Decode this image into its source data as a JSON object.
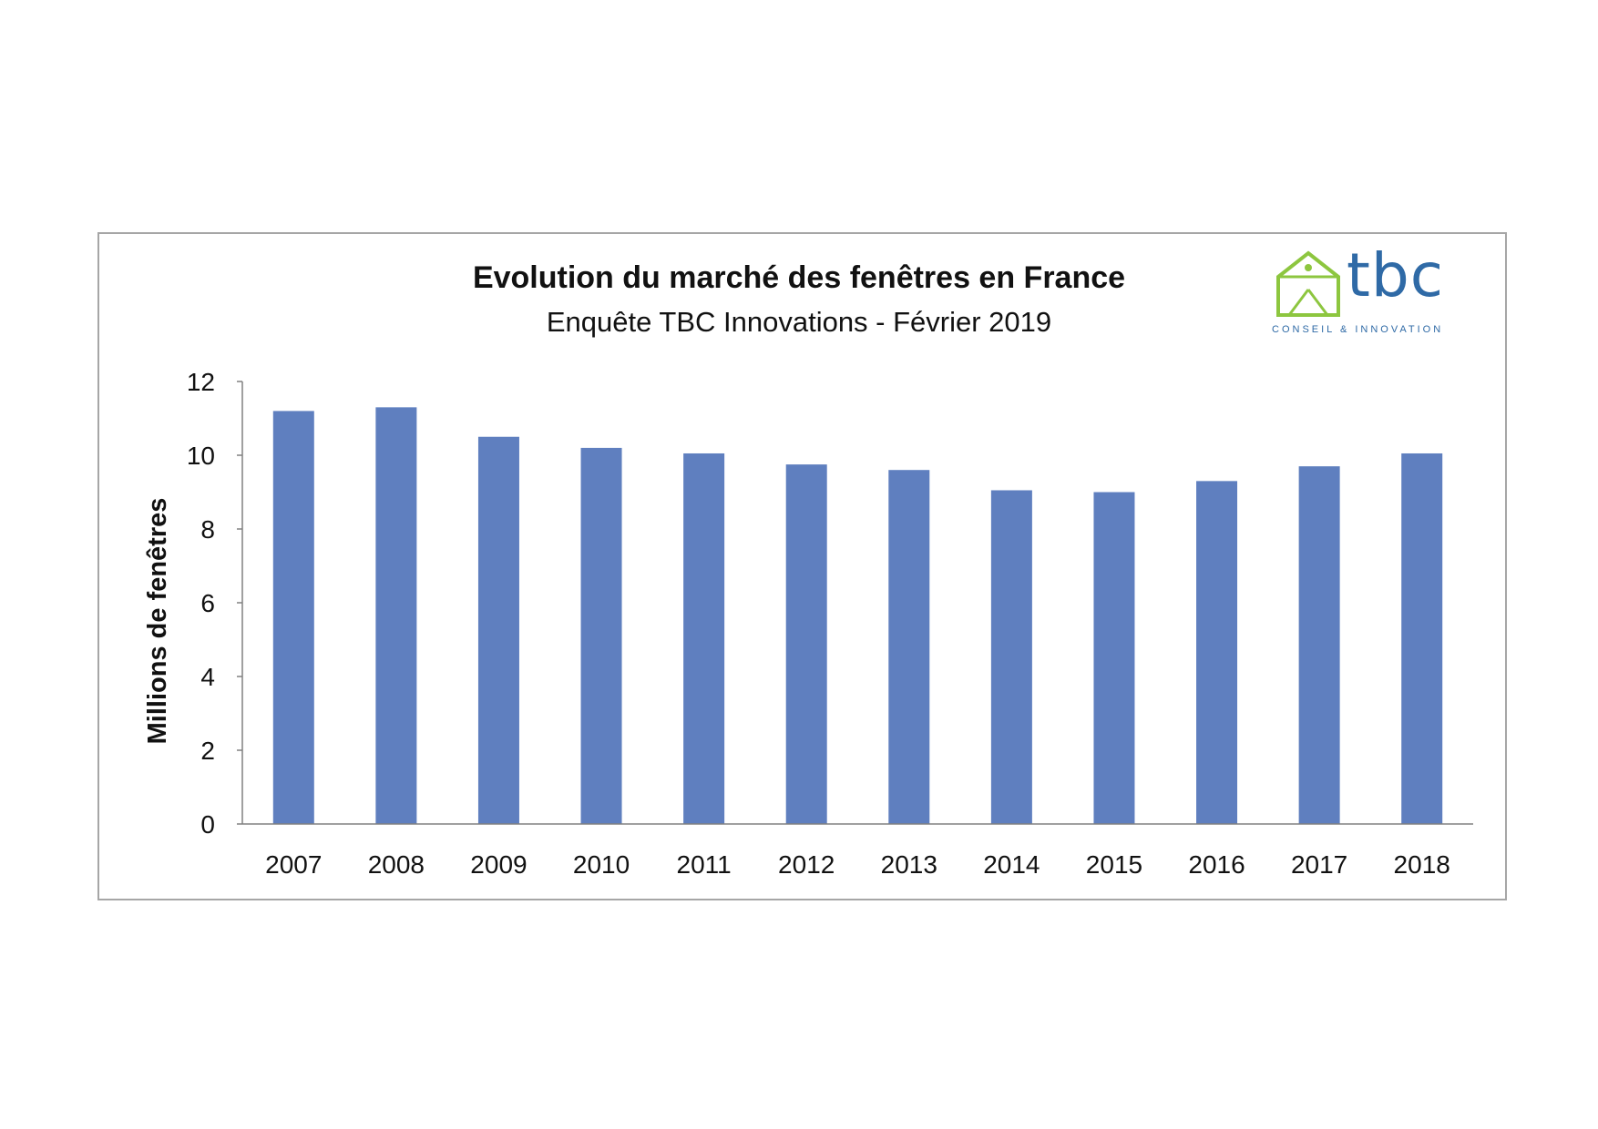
{
  "logo": {
    "word": "tbc",
    "tagline": "CONSEIL & INNOVATION",
    "house_color": "#8dc63f",
    "word_color": "#2f6aa6",
    "icon": "house-icon"
  },
  "chart_data": {
    "type": "bar",
    "title": "Evolution du marché des fenêtres en France",
    "subtitle": "Enquête TBC Innovations - Février 2019",
    "xlabel": "",
    "ylabel": "Millions de fenêtres",
    "categories": [
      "2007",
      "2008",
      "2009",
      "2010",
      "2011",
      "2012",
      "2013",
      "2014",
      "2015",
      "2016",
      "2017",
      "2018"
    ],
    "values": [
      11.2,
      11.3,
      10.5,
      10.2,
      10.05,
      9.75,
      9.6,
      9.05,
      9.0,
      9.3,
      9.7,
      10.05
    ],
    "ylim": [
      0,
      12
    ],
    "yticks": [
      "0",
      "2",
      "4",
      "6",
      "8",
      "10",
      "12"
    ],
    "bar_color": "#5f7fbf",
    "grid": false,
    "legend": "none"
  }
}
